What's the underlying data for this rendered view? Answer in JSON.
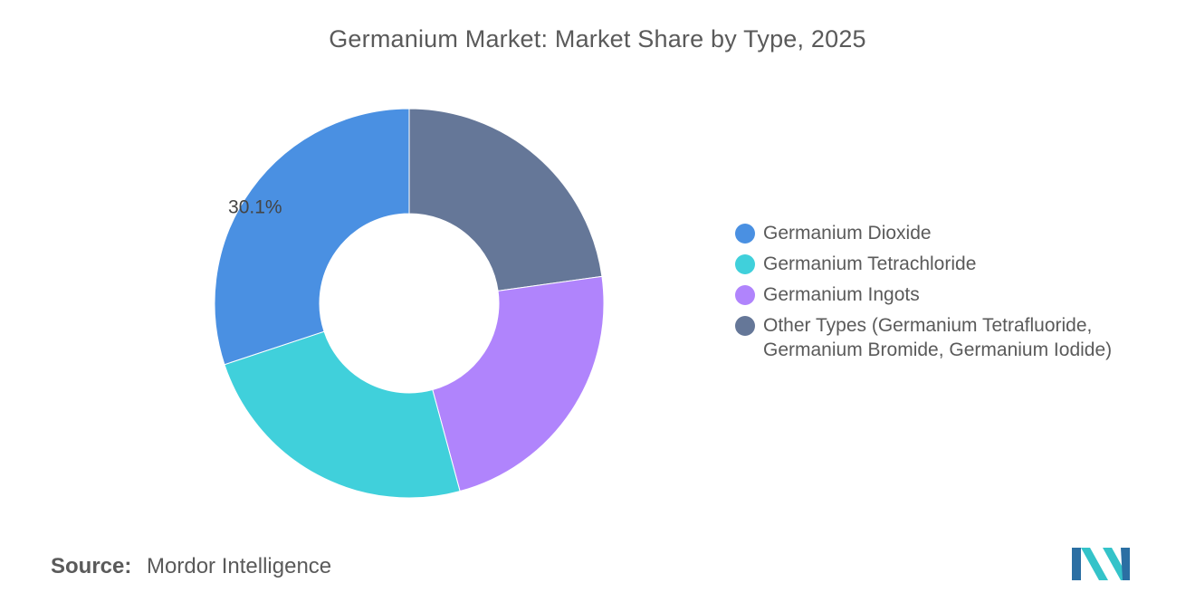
{
  "title": "Germanium Market: Market Share by Type, 2025",
  "chart_data": {
    "type": "pie",
    "variant": "donut",
    "title": "Germanium Market: Market Share by Type, 2025",
    "unit": "%",
    "legend_position": "right",
    "slices": [
      {
        "label": "Germanium Dioxide",
        "value": 30.1,
        "color": "#4A90E2",
        "data_label": "30.1%"
      },
      {
        "label": "Germanium Tetrachloride",
        "value": 24.1,
        "color": "#40D0DB",
        "data_label": ""
      },
      {
        "label": "Germanium Ingots",
        "value": 23.0,
        "color": "#B084FC",
        "data_label": ""
      },
      {
        "label": "Other Types (Germanium Tetrafluoride, Germanium Bromide, Germanium Iodide)",
        "value": 22.8,
        "color": "#657798",
        "data_label": ""
      }
    ]
  },
  "source": {
    "label": "Source:",
    "value": "Mordor Intelligence"
  },
  "logo": {
    "icon": "mordor-intelligence-logo",
    "colors": [
      "#1f3c68",
      "#2ec4c6"
    ]
  }
}
